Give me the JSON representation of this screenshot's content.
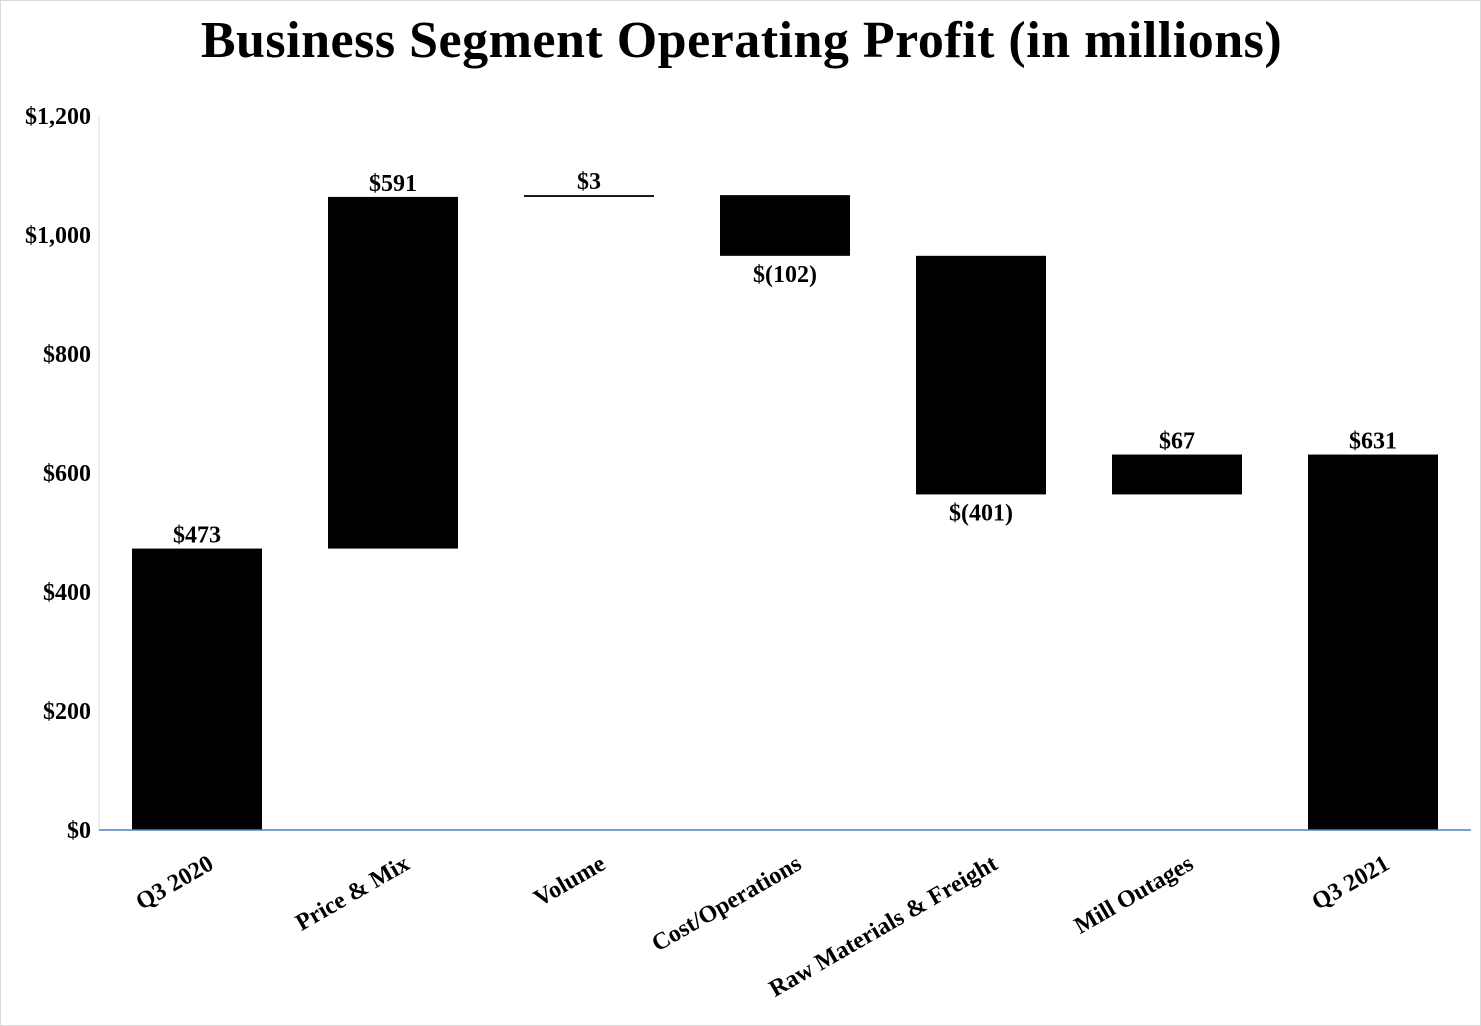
{
  "chart_data": {
    "type": "waterfall",
    "title": "Business Segment Operating Profit (in millions)",
    "xlabel": "",
    "ylabel": "",
    "ylim": [
      0,
      1200
    ],
    "y_ticks": [
      0,
      200,
      400,
      600,
      800,
      1000,
      1200
    ],
    "y_tick_labels": [
      "$0",
      "$200",
      "$400",
      "$600",
      "$800",
      "$1,000",
      "$1,200"
    ],
    "grid": false,
    "legend": "none",
    "bar_color": "#000000",
    "axis_color": "#4f81bd",
    "categories": [
      "Q3 2020",
      "Price & Mix",
      "Volume",
      "Cost/Operations",
      "Raw Materials & Freight",
      "Mill Outages",
      "Q3 2021"
    ],
    "values": [
      473,
      591,
      3,
      -102,
      -401,
      67,
      631
    ],
    "kinds": [
      "total",
      "delta",
      "delta",
      "delta",
      "delta",
      "delta",
      "total"
    ],
    "data_labels": [
      "$473",
      "$591",
      "$3",
      "$(102)",
      "$(401)",
      "$67",
      "$631"
    ]
  }
}
